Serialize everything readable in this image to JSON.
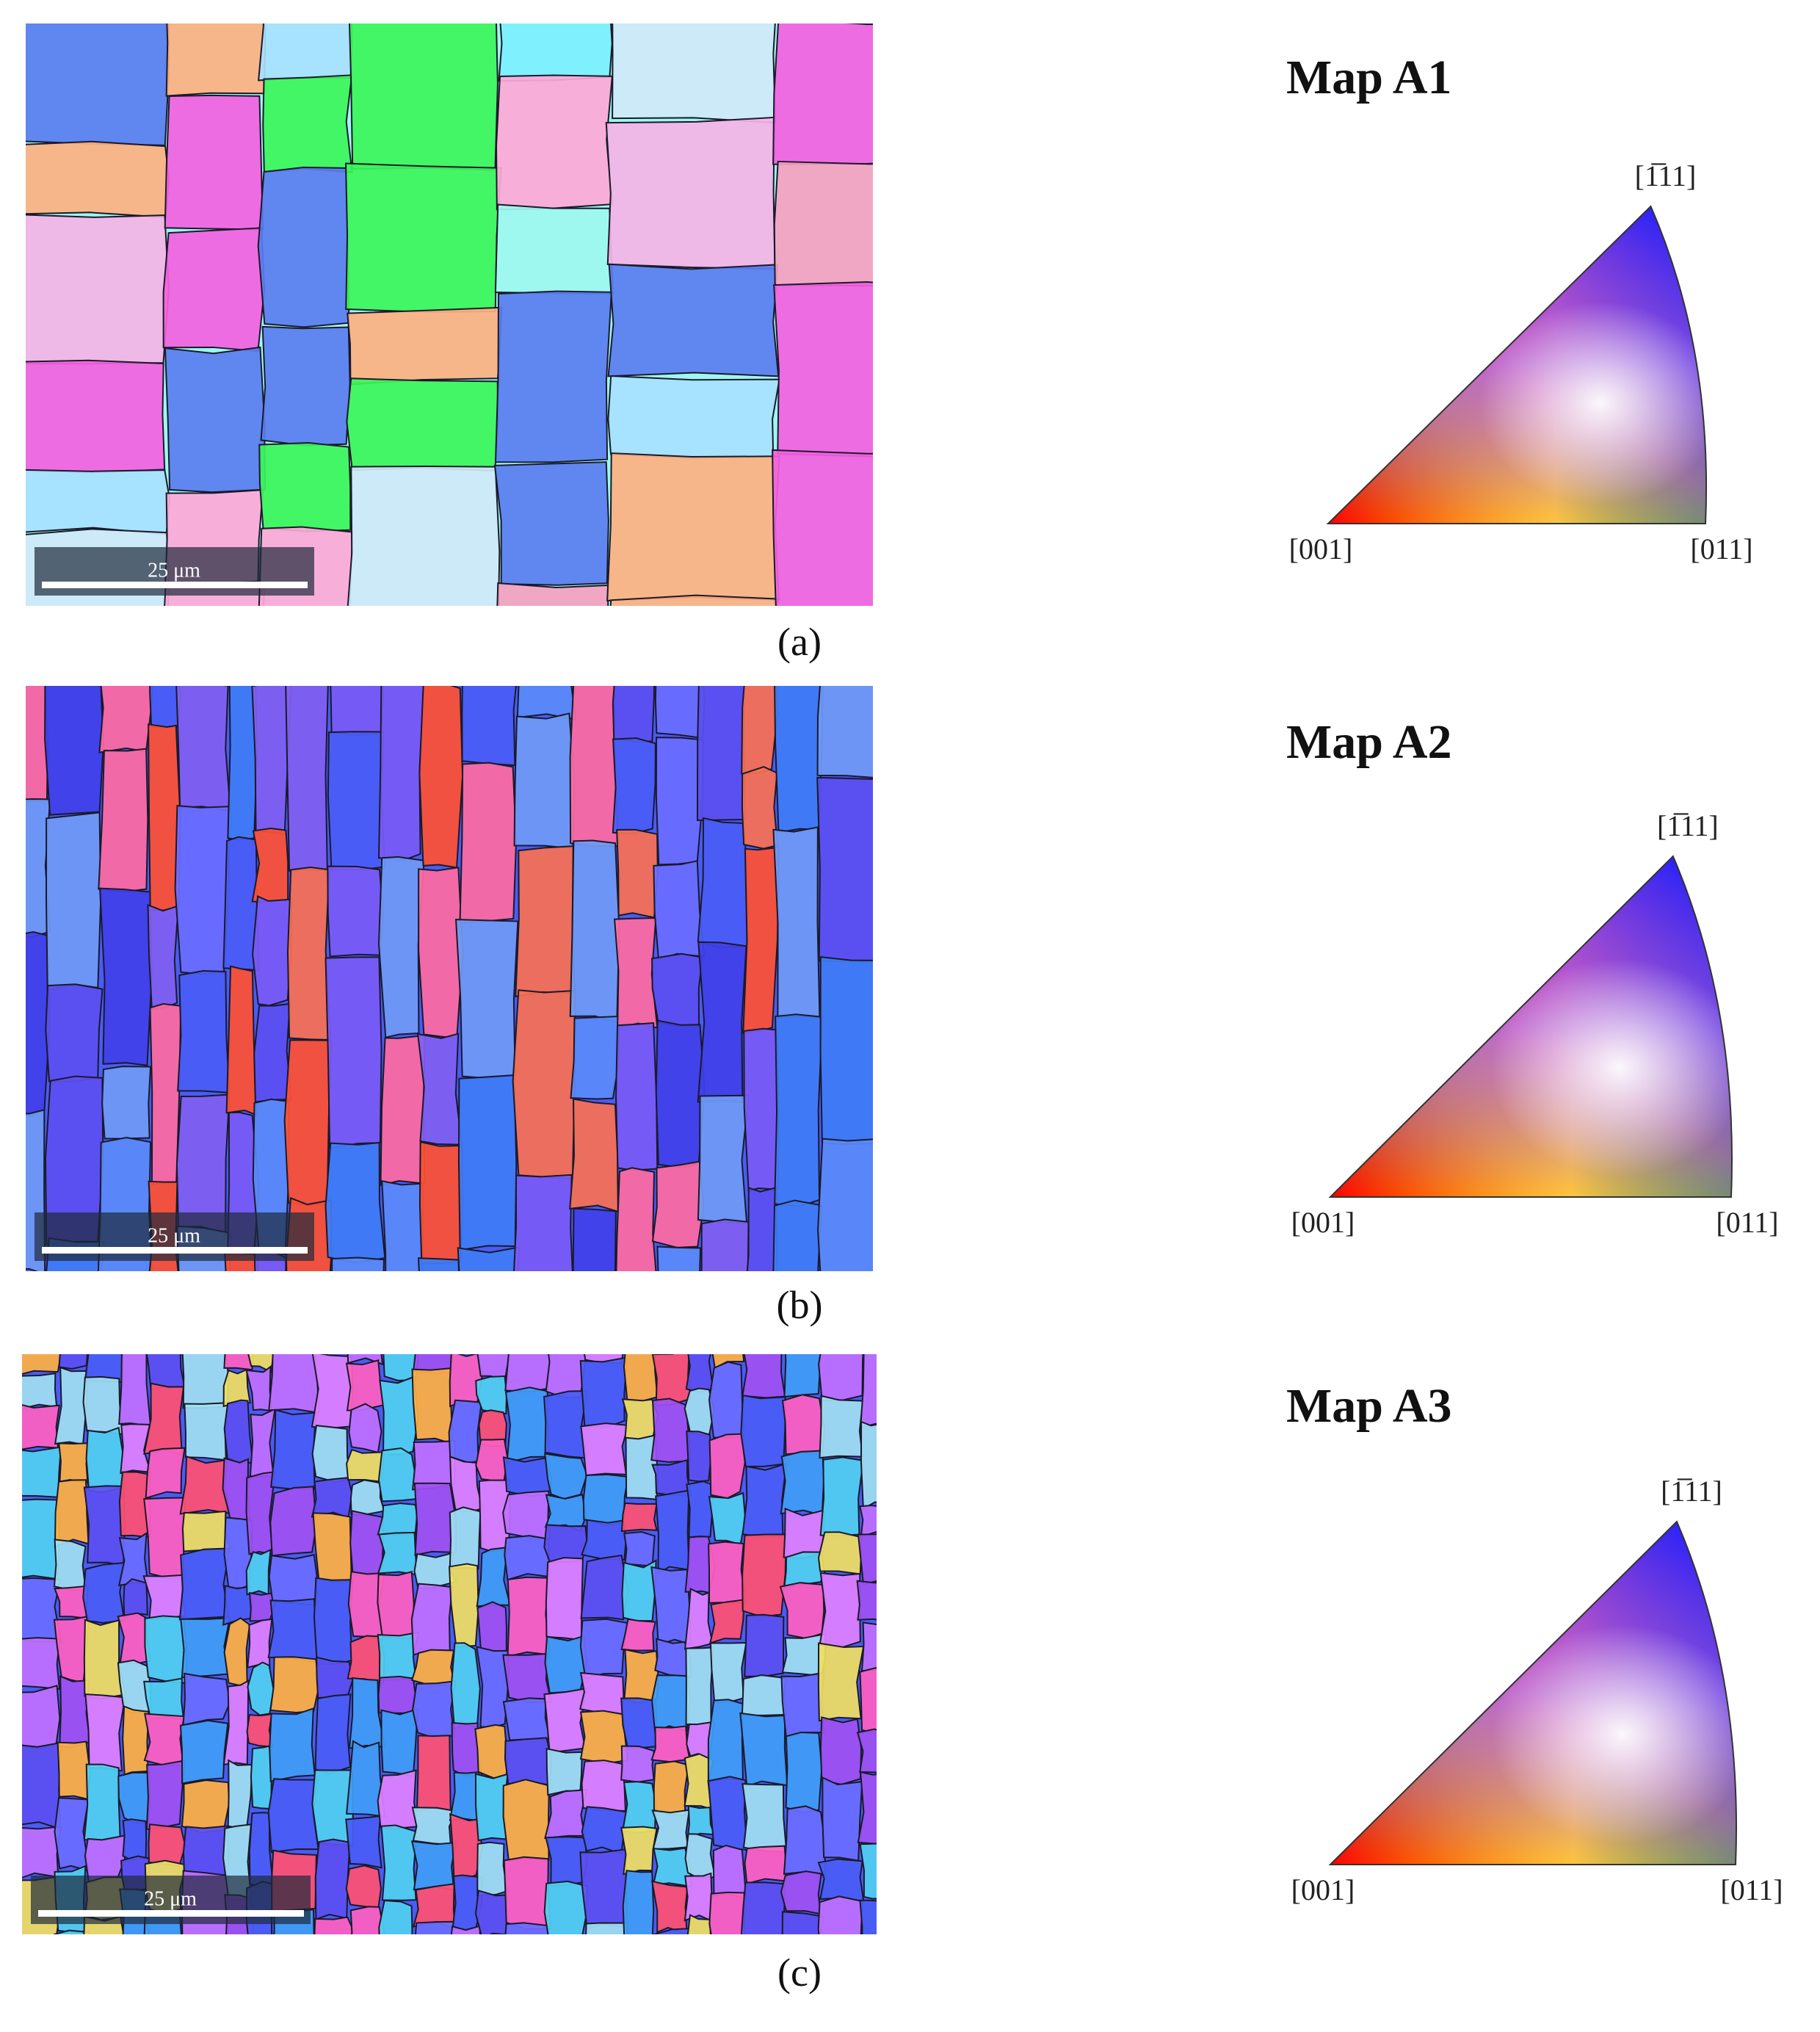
{
  "panels": [
    {
      "label": "(a)",
      "scale_bar": "25 μm",
      "map_title": "Map A1",
      "ipf": {
        "top": "[1̅11]",
        "left": "[001]",
        "right": "[011]"
      }
    },
    {
      "label": "(b)",
      "scale_bar": "25 μm",
      "map_title": "Map A2",
      "ipf": {
        "top": "[1̅11]",
        "left": "[001]",
        "right": "[011]"
      }
    },
    {
      "label": "(c)",
      "scale_bar": "25 μm",
      "map_title": "Map A3",
      "ipf": {
        "top": "[1̅11]",
        "left": "[001]",
        "right": "[011]"
      }
    }
  ]
}
